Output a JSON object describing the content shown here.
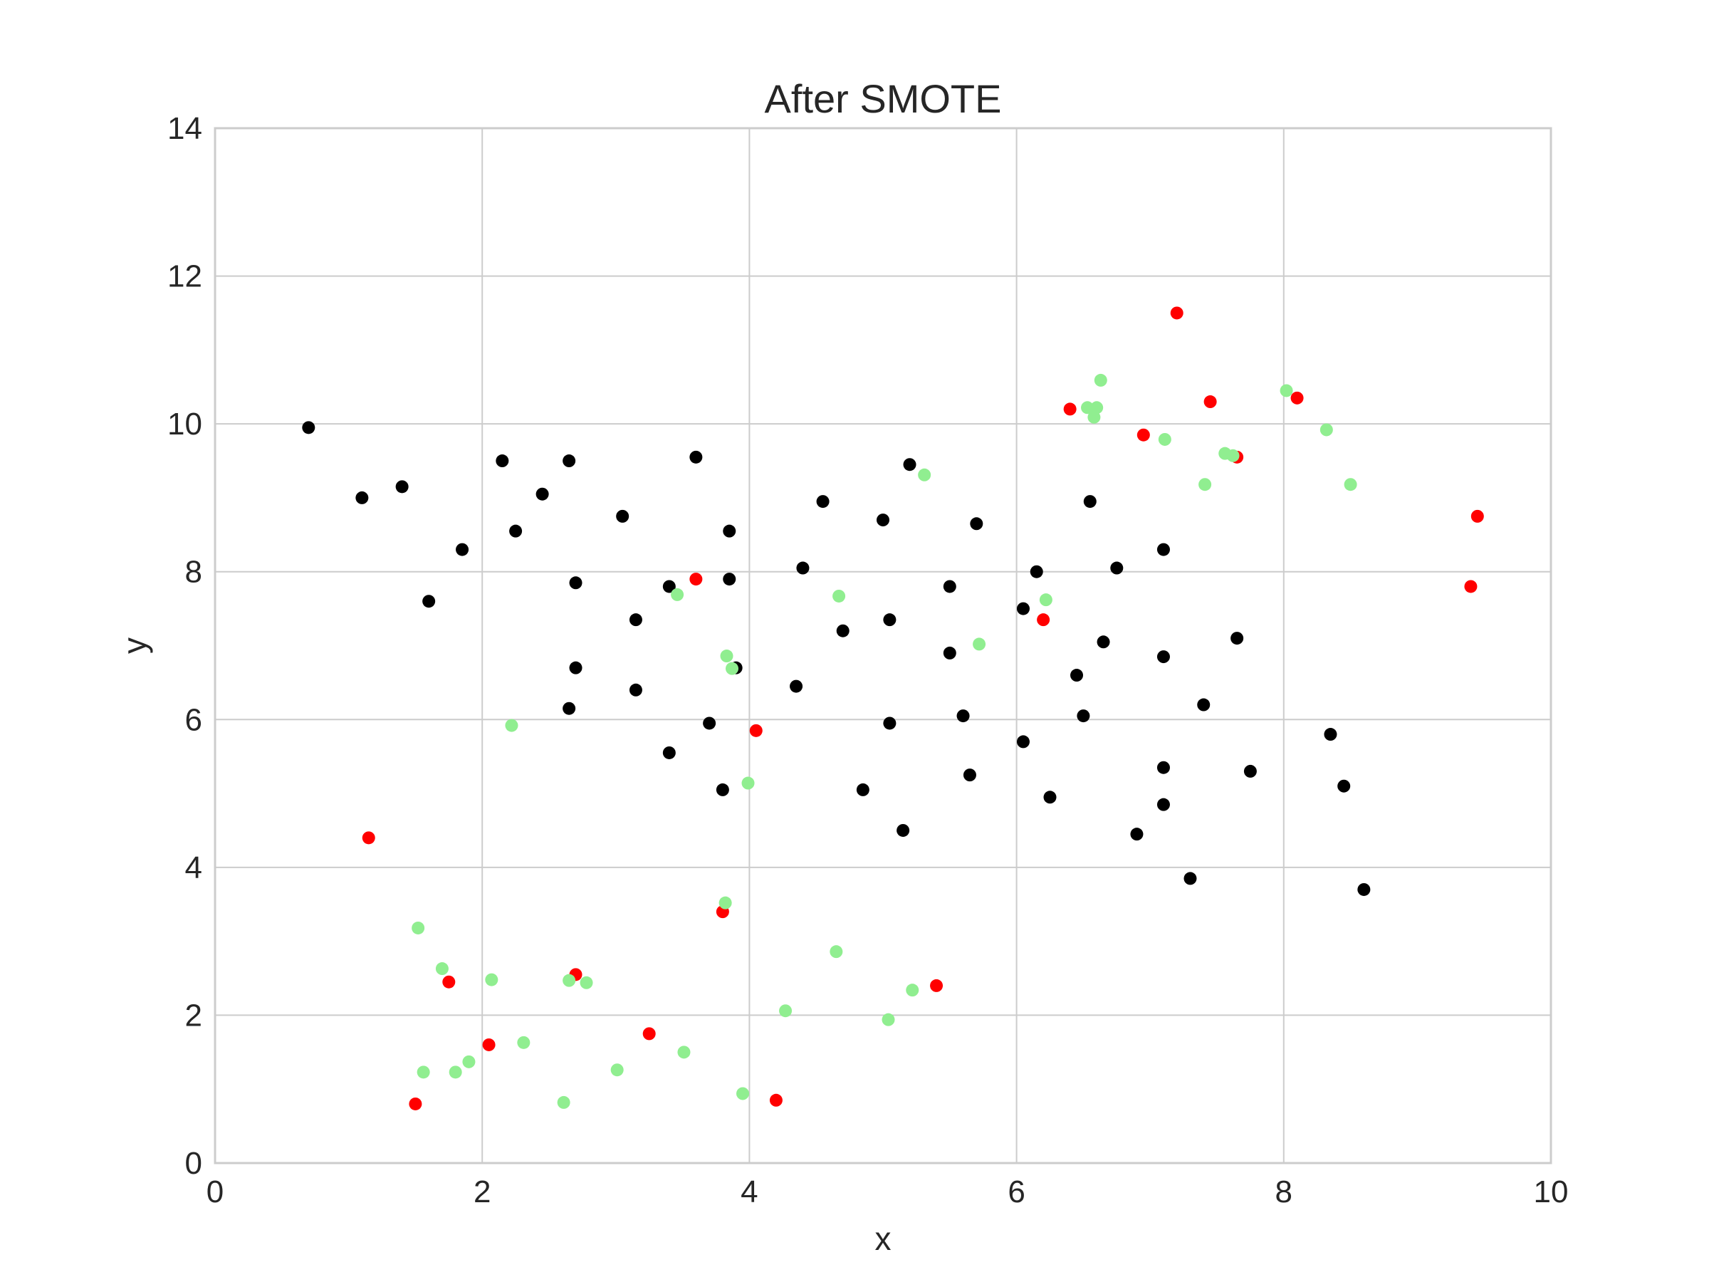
{
  "chart_data": {
    "type": "scatter",
    "title": "After SMOTE",
    "xlabel": "x",
    "ylabel": "y",
    "xlim": [
      0,
      10
    ],
    "ylim": [
      0,
      14
    ],
    "xticks": [
      "0",
      "2",
      "4",
      "6",
      "8",
      "10"
    ],
    "yticks": [
      "0",
      "2",
      "4",
      "6",
      "8",
      "10",
      "12",
      "14"
    ],
    "grid": true,
    "colors": {
      "black": "#000000",
      "red": "#ff0000",
      "green": "#90ee90",
      "grid": "#cccccc",
      "frame": "#cccccc"
    },
    "series": [
      {
        "color": "#000000",
        "points": [
          [
            0.7,
            9.95
          ],
          [
            1.1,
            9.0
          ],
          [
            1.4,
            9.15
          ],
          [
            1.6,
            7.6
          ],
          [
            1.85,
            8.3
          ],
          [
            2.15,
            9.5
          ],
          [
            2.25,
            8.55
          ],
          [
            2.45,
            9.05
          ],
          [
            2.65,
            9.5
          ],
          [
            2.7,
            7.85
          ],
          [
            2.7,
            6.7
          ],
          [
            2.65,
            6.15
          ],
          [
            3.05,
            8.75
          ],
          [
            3.15,
            7.35
          ],
          [
            3.15,
            6.4
          ],
          [
            3.4,
            7.8
          ],
          [
            3.4,
            5.55
          ],
          [
            3.6,
            9.55
          ],
          [
            3.85,
            8.55
          ],
          [
            3.85,
            7.9
          ],
          [
            3.9,
            6.7
          ],
          [
            3.7,
            5.95
          ],
          [
            3.8,
            5.05
          ],
          [
            4.35,
            6.45
          ],
          [
            4.4,
            8.05
          ],
          [
            4.55,
            8.95
          ],
          [
            4.7,
            7.2
          ],
          [
            4.85,
            5.05
          ],
          [
            5.0,
            8.7
          ],
          [
            5.05,
            7.35
          ],
          [
            5.05,
            5.95
          ],
          [
            5.15,
            4.5
          ],
          [
            5.2,
            9.45
          ],
          [
            5.5,
            7.8
          ],
          [
            5.5,
            6.9
          ],
          [
            5.6,
            6.05
          ],
          [
            5.65,
            5.25
          ],
          [
            5.7,
            8.65
          ],
          [
            6.05,
            7.5
          ],
          [
            6.05,
            5.7
          ],
          [
            6.15,
            8.0
          ],
          [
            6.25,
            4.95
          ],
          [
            6.45,
            6.6
          ],
          [
            6.5,
            6.05
          ],
          [
            6.55,
            8.95
          ],
          [
            6.65,
            7.05
          ],
          [
            6.75,
            8.05
          ],
          [
            6.9,
            4.45
          ],
          [
            7.1,
            8.3
          ],
          [
            7.1,
            6.85
          ],
          [
            7.1,
            5.35
          ],
          [
            7.1,
            4.85
          ],
          [
            7.3,
            3.85
          ],
          [
            7.4,
            6.2
          ],
          [
            7.65,
            7.1
          ],
          [
            7.75,
            5.3
          ],
          [
            8.35,
            5.8
          ],
          [
            8.45,
            5.1
          ],
          [
            8.6,
            3.7
          ]
        ]
      },
      {
        "color": "#ff0000",
        "points": [
          [
            1.15,
            4.4
          ],
          [
            1.5,
            0.8
          ],
          [
            1.75,
            2.45
          ],
          [
            2.05,
            1.6
          ],
          [
            2.7,
            2.55
          ],
          [
            3.25,
            1.75
          ],
          [
            3.6,
            7.9
          ],
          [
            3.8,
            3.4
          ],
          [
            4.05,
            5.85
          ],
          [
            4.2,
            0.85
          ],
          [
            5.4,
            2.4
          ],
          [
            6.2,
            7.35
          ],
          [
            6.4,
            10.2
          ],
          [
            6.95,
            9.85
          ],
          [
            7.2,
            11.5
          ],
          [
            7.45,
            10.3
          ],
          [
            7.65,
            9.55
          ],
          [
            8.1,
            10.35
          ],
          [
            9.4,
            7.8
          ],
          [
            9.45,
            8.75
          ]
        ]
      },
      {
        "color": "#90ee90",
        "points": [
          [
            1.52,
            3.18
          ],
          [
            1.56,
            1.23
          ],
          [
            1.7,
            2.63
          ],
          [
            1.8,
            1.23
          ],
          [
            1.9,
            1.37
          ],
          [
            2.07,
            2.48
          ],
          [
            2.22,
            5.92
          ],
          [
            2.31,
            1.63
          ],
          [
            2.61,
            0.82
          ],
          [
            2.65,
            2.47
          ],
          [
            2.78,
            2.44
          ],
          [
            3.01,
            1.26
          ],
          [
            3.46,
            7.69
          ],
          [
            3.51,
            1.5
          ],
          [
            3.82,
            3.52
          ],
          [
            3.83,
            6.86
          ],
          [
            3.87,
            6.69
          ],
          [
            3.95,
            0.94
          ],
          [
            3.99,
            5.14
          ],
          [
            4.27,
            2.06
          ],
          [
            4.65,
            2.86
          ],
          [
            4.67,
            7.67
          ],
          [
            5.04,
            1.94
          ],
          [
            5.22,
            2.34
          ],
          [
            5.31,
            9.31
          ],
          [
            5.72,
            7.02
          ],
          [
            6.22,
            7.62
          ],
          [
            6.53,
            10.22
          ],
          [
            6.58,
            10.09
          ],
          [
            6.6,
            10.22
          ],
          [
            6.63,
            10.59
          ],
          [
            7.11,
            9.79
          ],
          [
            7.41,
            9.18
          ],
          [
            7.56,
            9.6
          ],
          [
            7.62,
            9.57
          ],
          [
            8.02,
            10.45
          ],
          [
            8.32,
            9.92
          ],
          [
            8.5,
            9.18
          ]
        ]
      }
    ]
  }
}
